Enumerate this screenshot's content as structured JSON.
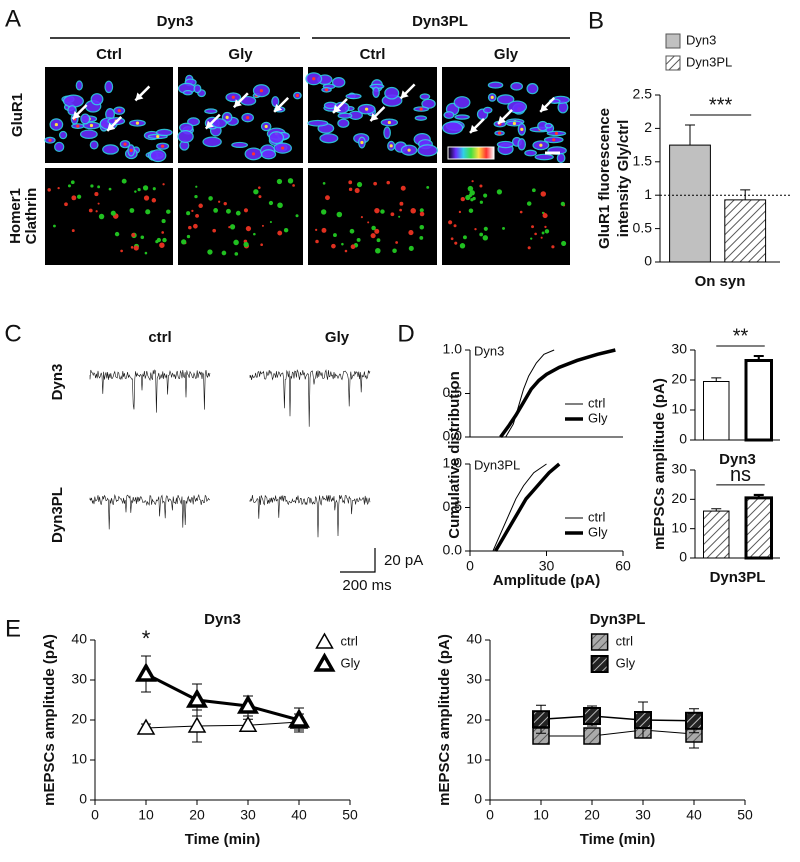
{
  "panel_labels": [
    "A",
    "B",
    "C",
    "D",
    "E"
  ],
  "images": {
    "groups": [
      "Dyn3",
      "Dyn3PL"
    ],
    "conditions": [
      "Ctrl",
      "Gly",
      "Ctrl",
      "Gly"
    ],
    "row_label": "GluR1",
    "stain_labels": [
      "Homer1",
      "Clathrin"
    ]
  },
  "traces": {
    "conditions": [
      "ctrl",
      "Gly"
    ],
    "groups": [
      "Dyn3",
      "Dyn3PL"
    ],
    "scale_y": "20 pA",
    "scale_x": "200 ms"
  },
  "chart_data": [
    {
      "type": "bar",
      "categories": [
        "On syn"
      ],
      "series": [
        {
          "name": "Dyn3",
          "color": "#c0c0c0",
          "hatch": false,
          "values": [
            1.75
          ],
          "errors": [
            0.3
          ]
        },
        {
          "name": "Dyn3PL",
          "color": "#ffffff",
          "hatch": true,
          "values": [
            0.93
          ],
          "errors": [
            0.15
          ]
        }
      ],
      "ylabel": [
        "GluR1 fluorescence",
        "intensity Gly/ctrl"
      ],
      "ylim": [
        0,
        2.5
      ],
      "yticks": [
        0,
        0.5,
        1,
        1.5,
        2,
        2.5
      ],
      "reference_line": 1,
      "annotation": "***",
      "legend": "above"
    },
    {
      "type": "line",
      "label": "Dyn3",
      "ylabel": "Cumulative distribution",
      "series": [
        {
          "name": "ctrl",
          "color": "#000000",
          "width": 1,
          "x": [
            14,
            17,
            19,
            21,
            23,
            26,
            29,
            33
          ],
          "values": [
            0,
            0.15,
            0.35,
            0.55,
            0.7,
            0.85,
            0.95,
            1
          ]
        },
        {
          "name": "Gly",
          "color": "#000000",
          "width": 3.5,
          "x": [
            12,
            15,
            18,
            21,
            24,
            27,
            30,
            35,
            42,
            50,
            57
          ],
          "values": [
            0,
            0.12,
            0.25,
            0.4,
            0.55,
            0.65,
            0.72,
            0.8,
            0.88,
            0.95,
            1
          ]
        }
      ],
      "xlim": [
        0,
        60
      ],
      "ylim": [
        0,
        1
      ],
      "yticks": [
        {
          "value": 0,
          "label": "0.0"
        },
        {
          "value": 0.5,
          "label": "0.5"
        },
        {
          "value": 1,
          "label": "1.0"
        }
      ],
      "legend": "right"
    },
    {
      "type": "line",
      "label": "Dyn3PL",
      "xlabel": "Amplitude (pA)",
      "series": [
        {
          "name": "ctrl",
          "color": "#000000",
          "width": 1,
          "x": [
            9,
            12,
            15,
            18,
            21,
            25,
            30
          ],
          "values": [
            0,
            0.2,
            0.4,
            0.6,
            0.75,
            0.9,
            1
          ]
        },
        {
          "name": "Gly",
          "color": "#000000",
          "width": 3.5,
          "x": [
            10,
            13,
            16,
            19,
            22,
            25,
            28,
            31,
            35
          ],
          "values": [
            0,
            0.15,
            0.3,
            0.45,
            0.6,
            0.7,
            0.8,
            0.9,
            1
          ]
        }
      ],
      "xlim": [
        0,
        60
      ],
      "xticks": [
        0,
        30,
        60
      ],
      "ylim": [
        0,
        1
      ],
      "yticks": [
        {
          "value": 0,
          "label": "0.0"
        },
        {
          "value": 0.5,
          "label": "0.5"
        },
        {
          "value": 1,
          "label": "1.0"
        }
      ],
      "legend": "right"
    },
    {
      "type": "bar",
      "values": [
        19.5,
        26.5
      ],
      "errors": [
        1.2,
        1.5
      ],
      "colors": [
        "#ffffff",
        "#ffffff"
      ],
      "hatch": [
        false,
        false
      ],
      "edge_widths": [
        1,
        3
      ],
      "xlabel": "Dyn3",
      "ylabel": "mEPSCs amplitude (pA)",
      "ylim": [
        0,
        30
      ],
      "yticks": [
        0,
        10,
        20,
        30
      ],
      "annotation": "**"
    },
    {
      "type": "bar",
      "values": [
        16,
        20.5
      ],
      "errors": [
        0.8,
        1
      ],
      "colors": [
        "#ffffff",
        "#ffffff"
      ],
      "hatch": [
        true,
        true
      ],
      "edge_widths": [
        1,
        3
      ],
      "xlabel": "Dyn3PL",
      "ylim": [
        0,
        30
      ],
      "yticks": [
        0,
        10,
        20,
        30
      ],
      "annotation": "ns"
    },
    {
      "type": "line",
      "title": "Dyn3",
      "x": [
        10,
        20,
        30,
        40
      ],
      "series": [
        {
          "name": "ctrl",
          "marker": "triangle",
          "fill": "#ffffff",
          "hatch": false,
          "width": 1,
          "values": [
            18,
            18.5,
            18.7,
            19.5
          ],
          "errors": [
            1,
            4,
            1.5,
            2
          ]
        },
        {
          "name": "Gly",
          "marker": "triangle",
          "fill": "#ffffff",
          "hatch": false,
          "width": 3,
          "values": [
            31.5,
            25,
            23.5,
            20
          ],
          "errors": [
            4.5,
            4,
            2.5,
            3
          ]
        }
      ],
      "xlabel": "Time (min)",
      "ylabel": "mEPSCs amplitude (pA)",
      "xlim": [
        0,
        50
      ],
      "xticks": [
        0,
        10,
        20,
        30,
        40,
        50
      ],
      "ylim": [
        0,
        40
      ],
      "yticks": [
        0,
        10,
        20,
        30,
        40
      ],
      "annotations": [
        {
          "text": "*",
          "x": 10
        }
      ],
      "legend": "top-right"
    },
    {
      "type": "line",
      "title": "Dyn3PL",
      "x": [
        10,
        20,
        30,
        40
      ],
      "series": [
        {
          "name": "ctrl",
          "marker": "square",
          "fill": "#aaaaaa",
          "hatch": true,
          "width": 1,
          "values": [
            16,
            16,
            17.5,
            16.5
          ],
          "errors": [
            1,
            1,
            2,
            3.5
          ]
        },
        {
          "name": "Gly",
          "marker": "square",
          "fill": "#222222",
          "hatch": true,
          "width": 1.5,
          "values": [
            20.2,
            21,
            20,
            19.8
          ],
          "errors": [
            3.5,
            2.5,
            4.5,
            3
          ]
        }
      ],
      "xlabel": "Time (min)",
      "ylabel": "mEPSCs amplitude (pA)",
      "xlim": [
        0,
        50
      ],
      "xticks": [
        0,
        10,
        20,
        30,
        40,
        50
      ],
      "ylim": [
        0,
        40
      ],
      "yticks": [
        0,
        10,
        20,
        30,
        40
      ],
      "legend": "top-center"
    }
  ]
}
